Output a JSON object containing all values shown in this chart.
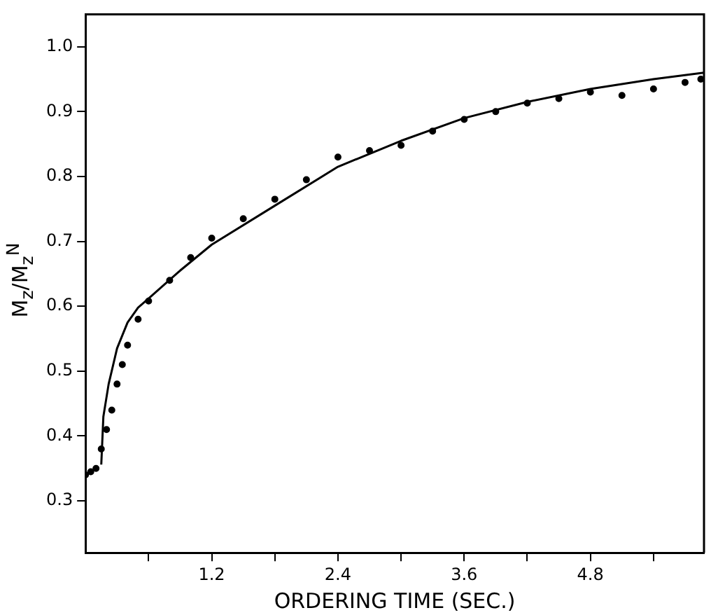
{
  "chart_data": {
    "type": "scatter",
    "xlabel": "ORDERING TIME (SEC.)",
    "ylabel": "M$_{z}$/M$_{z}$$^{N}$",
    "xlim": [
      0,
      5.88
    ],
    "ylim": [
      0.22,
      1.05
    ],
    "xticks": [
      {
        "value": 0.6,
        "label": null
      },
      1.2,
      {
        "value": 1.8,
        "label": null
      },
      2.4,
      {
        "value": 3.0,
        "label": null
      },
      3.6,
      {
        "value": 4.2,
        "label": null
      },
      4.8,
      {
        "value": 5.4,
        "label": null
      }
    ],
    "yticks": [
      0.3,
      0.4,
      0.5,
      0.6,
      0.7,
      0.8,
      0.9,
      {
        "value": 1.0,
        "label": "1.0"
      }
    ],
    "grid": false,
    "legend": false,
    "series": [
      {
        "marker": "circle",
        "color": "#000000",
        "x": [
          0.0,
          0.05,
          0.1,
          0.15,
          0.2,
          0.25,
          0.3,
          0.35,
          0.4,
          0.5,
          0.6,
          0.8,
          1.0,
          1.2,
          1.5,
          1.8,
          2.1,
          2.4,
          2.7,
          3.0,
          3.3,
          3.6,
          3.9,
          4.2,
          4.5,
          4.8,
          5.1,
          5.4,
          5.7,
          5.85
        ],
        "values": [
          0.34,
          0.345,
          0.35,
          0.38,
          0.41,
          0.44,
          0.48,
          0.51,
          0.54,
          0.58,
          0.608,
          0.64,
          0.675,
          0.705,
          0.735,
          0.765,
          0.795,
          0.83,
          0.84,
          0.848,
          0.87,
          0.888,
          0.9,
          0.913,
          0.92,
          0.93,
          0.925,
          0.935,
          0.945,
          0.95
        ]
      },
      {
        "type": "line",
        "marker": "none",
        "line_style": "solid",
        "color": "#000000",
        "x": [
          0.15,
          0.17,
          0.22,
          0.3,
          0.4,
          0.5,
          0.6,
          0.9,
          1.2,
          1.8,
          2.4,
          3.0,
          3.6,
          4.2,
          4.8,
          5.4,
          5.88
        ],
        "values": [
          0.356,
          0.43,
          0.48,
          0.535,
          0.575,
          0.598,
          0.612,
          0.655,
          0.695,
          0.755,
          0.815,
          0.855,
          0.89,
          0.915,
          0.935,
          0.95,
          0.96
        ]
      }
    ]
  }
}
